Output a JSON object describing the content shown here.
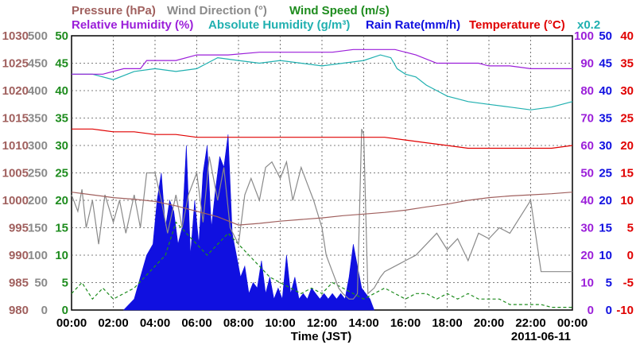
{
  "chart_data": {
    "type": "line",
    "date": "2011-06-11",
    "xlabel": "Time (JST)",
    "x_ticks": [
      "00:00",
      "02:00",
      "04:00",
      "06:00",
      "08:00",
      "10:00",
      "12:00",
      "14:00",
      "16:00",
      "18:00",
      "20:00",
      "22:00",
      "00:00"
    ],
    "legend": {
      "pressure": "Pressure (hPa)",
      "wind_direction": "Wind Direction (°)",
      "wind_speed": "Wind Speed (m/s)",
      "relative_humidity": "Relative Humidity (%)",
      "absolute_humidity": "Absolute Humidity (g/m³)",
      "rain_rate": "Rain Rate(mm/h)",
      "temperature": "Temperature (°C)",
      "rain_scale_note": "x0.2"
    },
    "axes": {
      "pressure": {
        "ticks": [
          "1030",
          "1025",
          "1020",
          "1015",
          "1010",
          "1005",
          "1000",
          "995",
          "990",
          "985",
          "980"
        ],
        "color": "#a0605e"
      },
      "wind_direction": {
        "ticks": [
          "500",
          "450",
          "400",
          "350",
          "300",
          "250",
          "200",
          "150",
          "100",
          "50",
          "0"
        ],
        "color": "#8a8a8a"
      },
      "wind_speed": {
        "ticks": [
          "50",
          "45",
          "40",
          "35",
          "30",
          "25",
          "20",
          "15",
          "10",
          "5",
          "0"
        ],
        "color": "#1e8c1e"
      },
      "relative_humidity": {
        "ticks": [
          "100",
          "90",
          "80",
          "70",
          "60",
          "50",
          "40",
          "30",
          "20",
          "10",
          "0"
        ],
        "color": "#9b1fd9"
      },
      "rain_rate": {
        "ticks": [
          "50",
          "45",
          "40",
          "35",
          "30",
          "25",
          "20",
          "15",
          "10",
          "5",
          "0"
        ],
        "color": "#1010e0"
      },
      "temperature": {
        "ticks": [
          "40",
          "35",
          "30",
          "25",
          "20",
          "15",
          "10",
          "5",
          "0",
          "-5",
          "-10"
        ],
        "color": "#e00000"
      }
    },
    "ylim": {
      "pressure": [
        980,
        1030
      ],
      "wind_direction": [
        0,
        500
      ],
      "wind_speed": [
        0,
        50
      ],
      "relative_humidity": [
        0,
        100
      ],
      "absolute_humidity": [
        0,
        50
      ],
      "rain_rate": [
        0,
        50
      ],
      "temperature": [
        -10,
        40
      ]
    },
    "xlim_hours": [
      0,
      24
    ],
    "grid": true,
    "series": [
      {
        "key": "relative_humidity",
        "color": "#9b1fd9",
        "x": [
          0,
          1.5,
          2.5,
          3.3,
          3.6,
          5.0,
          6.0,
          7.5,
          9.0,
          12.5,
          13.5,
          15.5,
          16.5,
          17.5,
          18.0,
          19.5,
          20.0,
          21.0,
          22.0,
          23.0,
          24.0
        ],
        "y": [
          86,
          86,
          88,
          88,
          91,
          91,
          93,
          93,
          94,
          94,
          95,
          95,
          93,
          90,
          90,
          90,
          89,
          89,
          88,
          88,
          88
        ]
      },
      {
        "key": "absolute_humidity",
        "color": "#20b0b0",
        "x": [
          0,
          1.0,
          2.0,
          3.0,
          4.0,
          5.0,
          6.0,
          6.5,
          7.0,
          8.0,
          9.0,
          10.0,
          11.0,
          12.0,
          13.0,
          14.0,
          14.8,
          15.3,
          15.6,
          16.0,
          16.5,
          17.0,
          17.5,
          18.0,
          18.5,
          19.0,
          20.0,
          21.0,
          22.0,
          23.0,
          24.0
        ],
        "y": [
          43,
          43,
          42,
          43.5,
          44,
          43.5,
          44,
          45,
          46,
          45.5,
          45,
          45.5,
          45,
          44.5,
          45,
          45.5,
          46.5,
          46,
          44,
          43,
          42.5,
          41,
          40,
          39,
          38.5,
          38,
          37.5,
          37,
          36.5,
          37,
          38
        ]
      },
      {
        "key": "temperature",
        "color": "#e00000",
        "x": [
          0,
          1.0,
          2.0,
          3.0,
          4.0,
          5.0,
          6.0,
          7.0,
          8.0,
          9.0,
          10.0,
          11.0,
          12.0,
          13.0,
          14.0,
          15.0,
          16.0,
          17.0,
          18.0,
          19.0,
          20.0,
          21.0,
          22.0,
          23.0,
          24.0
        ],
        "y": [
          23,
          23,
          22.5,
          22.5,
          22,
          22,
          21.5,
          21.5,
          21.5,
          21.5,
          21.5,
          21.5,
          21.5,
          21.5,
          21.5,
          21.5,
          21,
          20.5,
          20,
          19.5,
          19.5,
          19.5,
          19.5,
          19.5,
          20
        ]
      },
      {
        "key": "pressure",
        "color": "#a0605e",
        "x": [
          0,
          1.0,
          2.0,
          3.0,
          4.0,
          5.0,
          6.0,
          7.0,
          8.0,
          9.0,
          10.0,
          11.0,
          12.0,
          13.0,
          14.0,
          15.0,
          16.0,
          17.0,
          18.0,
          19.0,
          20.0,
          21.0,
          22.0,
          23.0,
          24.0
        ],
        "y": [
          1001.5,
          1001,
          1000.5,
          1000.2,
          999.8,
          999,
          998,
          997,
          995.5,
          995.8,
          996.2,
          996.5,
          996.8,
          997.2,
          997.5,
          997.8,
          998.2,
          998.8,
          999.3,
          1000,
          1000.5,
          1000.8,
          1001,
          1001.2,
          1001.5
        ]
      },
      {
        "key": "wind_direction",
        "color": "#8a8a8a",
        "x": [
          0,
          0.3,
          0.5,
          0.7,
          1.0,
          1.3,
          1.6,
          2.0,
          2.3,
          2.6,
          3.0,
          3.3,
          3.6,
          4.0,
          4.3,
          4.6,
          5.0,
          5.3,
          5.6,
          6.0,
          6.3,
          6.6,
          7.0,
          7.3,
          7.6,
          8.0,
          8.3,
          8.6,
          9.0,
          9.3,
          9.6,
          10.0,
          10.3,
          10.6,
          11.0,
          11.3,
          11.6,
          12.0,
          12.2,
          12.5,
          12.8,
          13.0,
          13.3,
          13.5,
          13.7,
          13.9,
          14.0,
          14.2,
          14.5,
          14.8,
          15.0,
          15.5,
          16.0,
          16.5,
          17.0,
          17.5,
          18.0,
          18.5,
          19.0,
          19.5,
          20.0,
          20.5,
          21.0,
          21.5,
          22.0,
          22.5,
          23.0,
          23.5,
          24.0
        ],
        "y": [
          210,
          180,
          220,
          150,
          200,
          120,
          210,
          160,
          200,
          140,
          210,
          150,
          250,
          250,
          200,
          140,
          210,
          150,
          210,
          250,
          160,
          280,
          200,
          260,
          150,
          120,
          210,
          240,
          200,
          260,
          270,
          240,
          270,
          200,
          260,
          230,
          200,
          150,
          100,
          70,
          40,
          30,
          20,
          20,
          30,
          330,
          320,
          30,
          40,
          60,
          70,
          80,
          90,
          100,
          120,
          140,
          110,
          130,
          90,
          140,
          130,
          150,
          140,
          170,
          200,
          70,
          70,
          70,
          70
        ]
      },
      {
        "key": "wind_speed",
        "color": "#1e8c1e",
        "x": [
          0,
          0.5,
          1.0,
          1.5,
          2.0,
          2.5,
          3.0,
          3.5,
          4.0,
          4.5,
          5.0,
          5.5,
          6.0,
          6.5,
          7.0,
          7.5,
          8.0,
          8.5,
          9.0,
          9.5,
          10.0,
          10.5,
          11.0,
          11.5,
          12.0,
          12.5,
          13.0,
          13.5,
          14.0,
          14.5,
          15.0,
          15.5,
          16.0,
          16.5,
          17.0,
          17.5,
          18.0,
          18.5,
          19.0,
          19.5,
          20.0,
          20.5,
          21.0,
          21.5,
          22.0,
          22.5,
          23.0,
          23.5,
          24.0
        ],
        "y": [
          3,
          5,
          2,
          4,
          2,
          3,
          4,
          6,
          8,
          10,
          16,
          14,
          12,
          10,
          12,
          14,
          12,
          10,
          8,
          6,
          5,
          4,
          3,
          4,
          3,
          5,
          4,
          3,
          2,
          3,
          4,
          3,
          2,
          3,
          3,
          2,
          3,
          2,
          3,
          2,
          2,
          2,
          1,
          1,
          1,
          1,
          0.5,
          0.5,
          0.5
        ]
      },
      {
        "key": "rain_rate",
        "color": "#1010e0",
        "fill": true,
        "x": [
          2.5,
          3.0,
          3.3,
          3.6,
          3.9,
          4.1,
          4.3,
          4.5,
          4.7,
          4.9,
          5.1,
          5.3,
          5.5,
          5.7,
          5.9,
          6.1,
          6.3,
          6.5,
          6.7,
          6.9,
          7.1,
          7.3,
          7.5,
          7.7,
          7.9,
          8.1,
          8.3,
          8.5,
          8.7,
          8.9,
          9.1,
          9.3,
          9.5,
          9.7,
          9.9,
          10.1,
          10.3,
          10.5,
          10.7,
          10.9,
          11.1,
          11.3,
          11.5,
          11.7,
          11.9,
          12.1,
          12.3,
          12.5,
          12.7,
          12.9,
          13.1,
          13.3,
          13.5,
          13.7,
          13.9,
          14.1,
          14.3,
          14.5
        ],
        "y": [
          0,
          2,
          6,
          10,
          12,
          20,
          25,
          15,
          20,
          18,
          12,
          15,
          30,
          10,
          20,
          12,
          25,
          30,
          15,
          22,
          28,
          26,
          32,
          14,
          10,
          6,
          8,
          3,
          5,
          4,
          9,
          3,
          6,
          2,
          4,
          2,
          10,
          3,
          6,
          2,
          3,
          2,
          4,
          3,
          2,
          3,
          2,
          3,
          2,
          3,
          2,
          6,
          12,
          8,
          4,
          3,
          2,
          0
        ]
      }
    ]
  }
}
